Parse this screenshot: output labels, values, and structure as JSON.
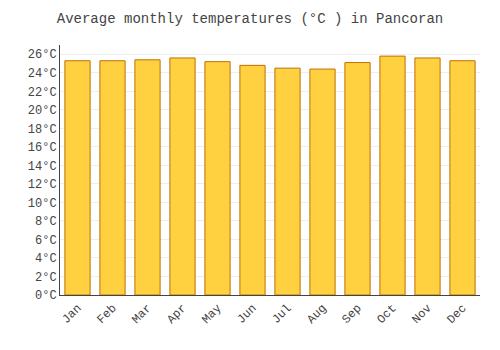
{
  "chart_data": {
    "type": "bar",
    "title": "Average monthly temperatures (°C ) in Pancoran",
    "categories": [
      "Jan",
      "Feb",
      "Mar",
      "Apr",
      "May",
      "Jun",
      "Jul",
      "Aug",
      "Sep",
      "Oct",
      "Nov",
      "Dec"
    ],
    "values": [
      25.3,
      25.3,
      25.4,
      25.6,
      25.2,
      24.8,
      24.5,
      24.4,
      25.1,
      25.8,
      25.6,
      25.3
    ],
    "color": "#FFD040",
    "ylim": [
      0,
      27
    ],
    "yticks": [
      {
        "value": 0,
        "label": "0°C"
      },
      {
        "value": 2,
        "label": "2°C"
      },
      {
        "value": 4,
        "label": "4°C"
      },
      {
        "value": 6,
        "label": "6°C"
      },
      {
        "value": 8,
        "label": "8°C"
      },
      {
        "value": 10,
        "label": "10°C"
      },
      {
        "value": 12,
        "label": "12°C"
      },
      {
        "value": 14,
        "label": "14°C"
      },
      {
        "value": 16,
        "label": "16°C"
      },
      {
        "value": 18,
        "label": "18°C"
      },
      {
        "value": 20,
        "label": "20°C"
      },
      {
        "value": 22,
        "label": "22°C"
      },
      {
        "value": 24,
        "label": "24°C"
      },
      {
        "value": 26,
        "label": "26°C"
      }
    ],
    "grid": true
  }
}
